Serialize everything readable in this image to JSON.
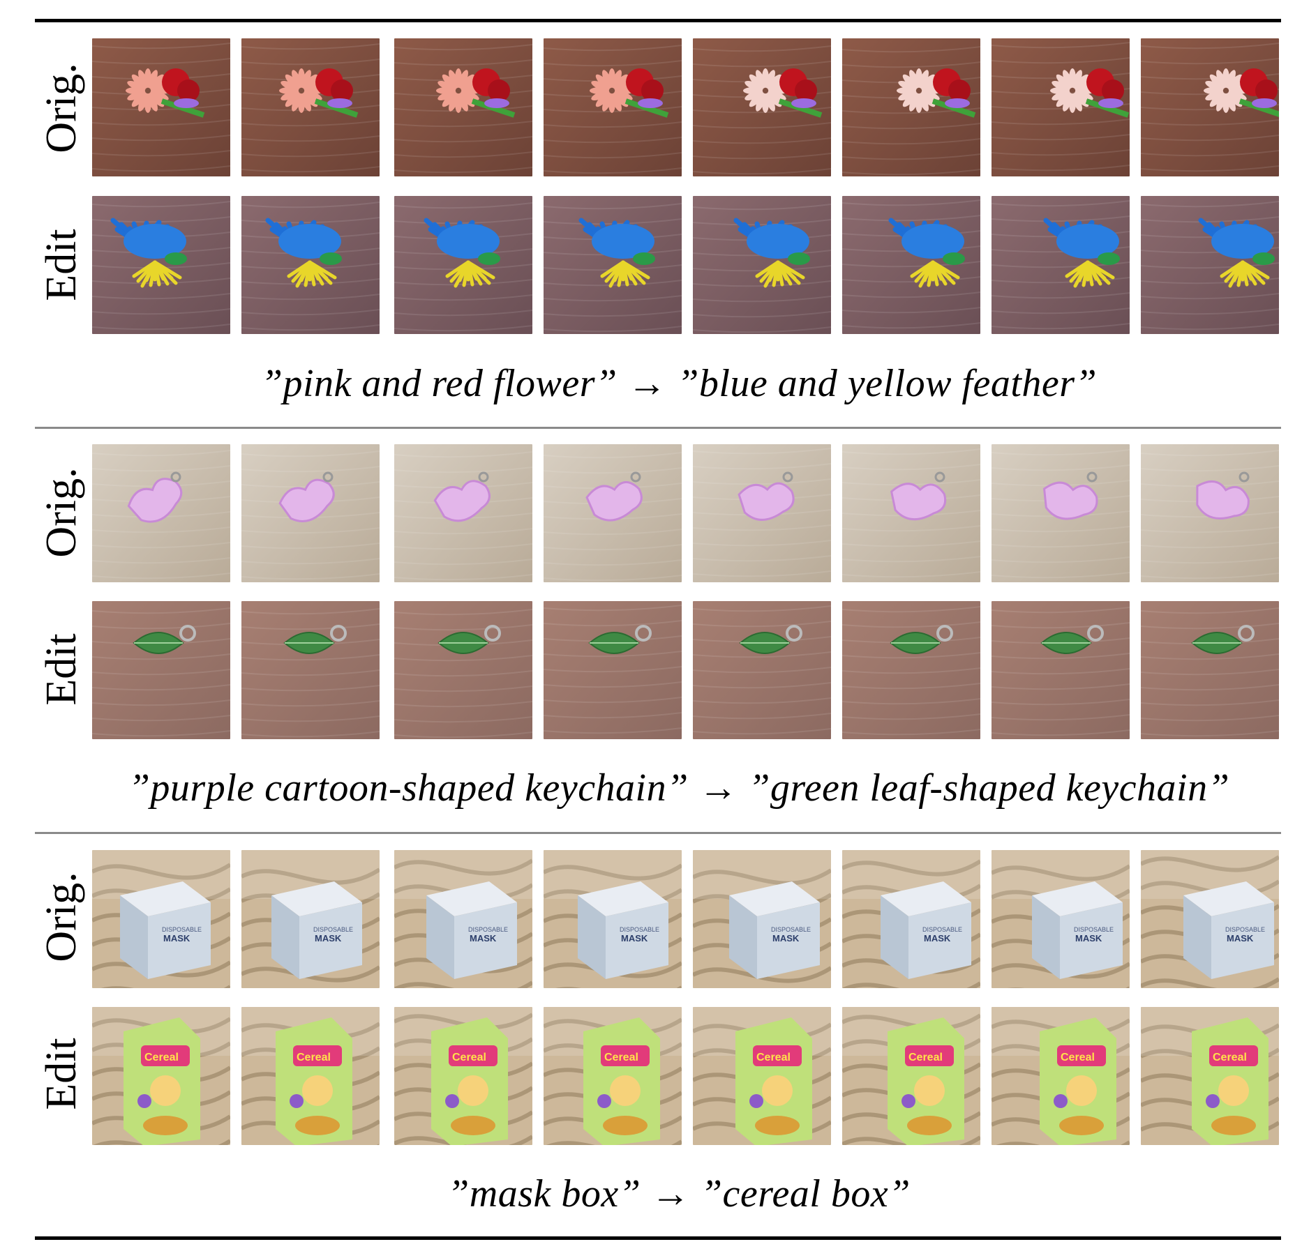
{
  "labels": {
    "orig": "Orig.",
    "edit": "Edit"
  },
  "colors": {
    "rule_thick": "#000000",
    "rule_thin": "#8a8a8a"
  },
  "panels": [
    {
      "caption": "”pink and red flower” → ”blue and yellow feather”",
      "orig_scene": "pink and red flower bouquet on wooden table, 8 views",
      "edit_scene": "blue and yellow feather bunch on wooden table, 8 views"
    },
    {
      "caption": "”purple cartoon-shaped keychain” → ”green leaf-shaped keychain”",
      "orig_scene": "purple cartoon-shaped keychain on light wood, 8 views",
      "edit_scene": "green leaf-shaped keychain on wood, 8 views"
    },
    {
      "caption": "”mask box” → ”cereal box”",
      "orig_scene": "disposable mask box on marble floor, 8 views",
      "edit_scene": "colorful cereal box on marble floor, 8 views"
    }
  ],
  "frame_text": {
    "mask_brand": "DISPOSABLE",
    "mask_word": "MASK",
    "cereal_word": "Cereal"
  }
}
